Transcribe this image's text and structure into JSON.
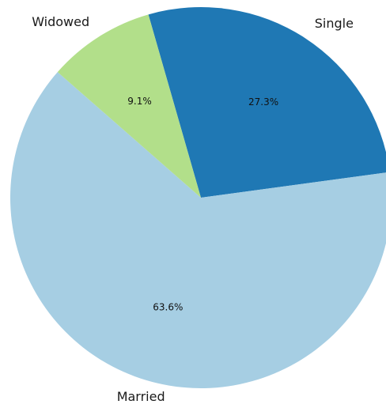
{
  "chart_data": {
    "type": "pie",
    "title": "",
    "slices": [
      {
        "label": "Single",
        "value": 27.3,
        "value_label": "27.3%",
        "color": "#1f78b4"
      },
      {
        "label": "Married",
        "value": 63.6,
        "value_label": "63.6%",
        "color": "#a6cee3"
      },
      {
        "label": "Widowed",
        "value": 9.1,
        "value_label": "9.1%",
        "color": "#b2df8a"
      }
    ],
    "legend": "none"
  }
}
